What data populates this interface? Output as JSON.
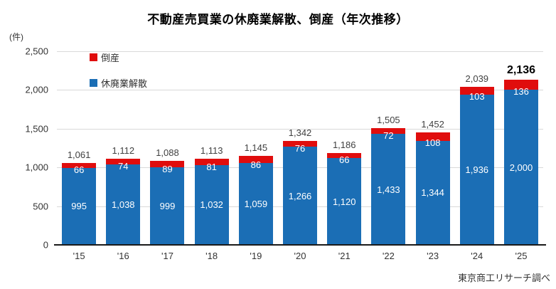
{
  "title": "不動産売買業の休廃業解散、倒産（年次推移）",
  "unit_label": "(件)",
  "source": "東京商工リサーチ調べ",
  "legend": [
    {
      "label": "倒産",
      "color": "#e00d0d"
    },
    {
      "label": "休廃業解散",
      "color": "#1b6eb5"
    }
  ],
  "colors": {
    "bankruptcy_red": "#e00d0d",
    "closure_blue": "#1b6eb5",
    "gridline": "#d9d9d9",
    "axis": "#1a1a1a",
    "label_dark": "#404040"
  },
  "chart_data": {
    "type": "bar",
    "stacked": true,
    "title": "不動産売買業の休廃業解散、倒産（年次推移）",
    "ylabel": "(件)",
    "xlabel": "",
    "categories": [
      "'15",
      "'16",
      "'17",
      "'18",
      "'19",
      "'20",
      "'21",
      "'22",
      "'23",
      "'24",
      "'25"
    ],
    "series": [
      {
        "name": "休廃業解散",
        "color": "#1b6eb5",
        "values": [
          995,
          1038,
          999,
          1032,
          1059,
          1266,
          1120,
          1433,
          1344,
          1936,
          2000
        ]
      },
      {
        "name": "倒産",
        "color": "#e00d0d",
        "values": [
          66,
          74,
          89,
          81,
          86,
          76,
          66,
          72,
          108,
          103,
          136
        ]
      }
    ],
    "totals": [
      1061,
      1112,
      1088,
      1113,
      1145,
      1342,
      1186,
      1505,
      1452,
      2039,
      2136
    ],
    "emphasized_total_index": 10,
    "ylim": [
      0,
      2500
    ],
    "ytick_interval": 500,
    "ytick_labels": [
      "0",
      "500",
      "1,000",
      "1,500",
      "2,000",
      "2,500"
    ],
    "grid": true,
    "legend_position": "inside-top-left"
  }
}
